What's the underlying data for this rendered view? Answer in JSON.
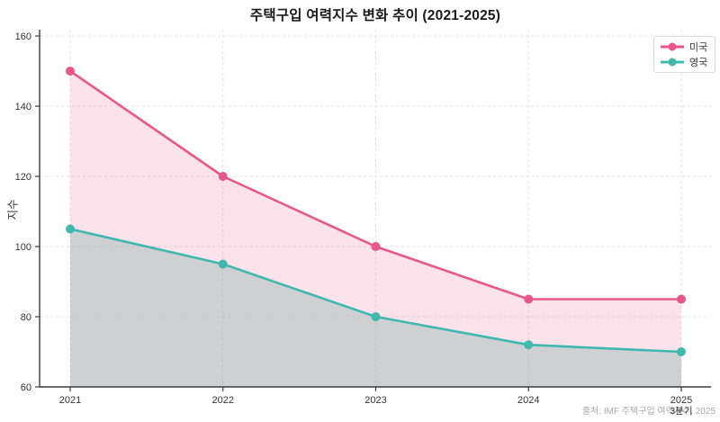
{
  "chart_data": {
    "type": "line",
    "title": "주택구입 여력지수 변화 추이 (2021-2025)",
    "ylabel": "지수",
    "xlabel": "",
    "categories": [
      "2021",
      "2022",
      "2023",
      "2024",
      "2025"
    ],
    "x_sub_labels": [
      "",
      "",
      "",
      "",
      "3분기"
    ],
    "yticks": [
      60,
      80,
      100,
      120,
      140,
      160
    ],
    "ylim": [
      60,
      160
    ],
    "grid": true,
    "grid_style": "dashed",
    "legend_position": "top-right",
    "source": "출처: IMF 주택구입 여력지수, 2025",
    "series": [
      {
        "name": "미국",
        "color": "#e9578a",
        "fill": "rgba(236,95,140,0.18)",
        "values": [
          150,
          120,
          100,
          85,
          85
        ]
      },
      {
        "name": "영국",
        "color": "#3fb8ad",
        "fill": "rgba(148,150,156,0.45)",
        "values": [
          105,
          95,
          80,
          72,
          70
        ]
      }
    ],
    "axis_color": "#3c3c3c",
    "tick_label_color": "#333333",
    "gridline_color": "#e3e3e3"
  }
}
